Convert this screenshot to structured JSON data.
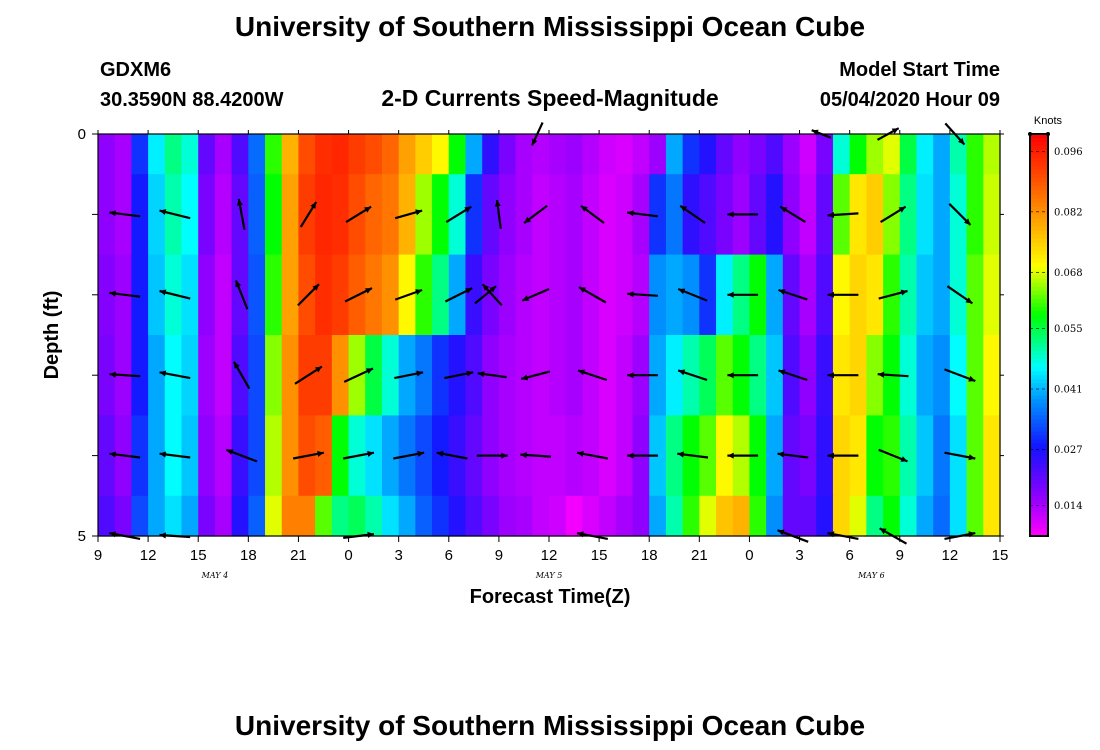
{
  "chart_data": {
    "type": "heatmap",
    "title": "University of Southern Mississippi Ocean Cube",
    "footer_title": "University of Southern Mississippi Ocean Cube",
    "station_id": "GDXM6",
    "station_coords": "30.3590N 88.4200W",
    "subtitle": "2-D Currents Speed-Magnitude",
    "model_start_label": "Model Start Time",
    "model_start_value": "05/04/2020 Hour 09",
    "xlabel": "Forecast Time(Z)",
    "ylabel": "Depth (ft)",
    "x_range": [
      0,
      54
    ],
    "y_range": [
      0,
      5
    ],
    "x_tick_labels": [
      "9",
      "12",
      "15",
      "18",
      "21",
      "0",
      "3",
      "6",
      "9",
      "12",
      "15",
      "18",
      "21",
      "0",
      "3",
      "6",
      "9",
      "12",
      "15"
    ],
    "y_tick_labels": [
      "0",
      "5"
    ],
    "date_labels": [
      {
        "label": "MAY 4",
        "hour": 7
      },
      {
        "label": "MAY 5",
        "hour": 27
      },
      {
        "label": "MAY 6",
        "hour": 46.3
      }
    ],
    "colorbar": {
      "unit": "Knots",
      "min": 0.007,
      "max": 0.1,
      "tick_values": [
        0.096,
        0.082,
        0.068,
        0.055,
        0.041,
        0.027,
        0.014
      ],
      "tick_labels": [
        "0.096",
        "0.082",
        "0.068",
        "0.055",
        "0.041",
        "0.027",
        "0.014"
      ]
    },
    "depth_rows": [
      0,
      1,
      2,
      3,
      4,
      5
    ],
    "hours": [
      0,
      1,
      2,
      3,
      4,
      5,
      6,
      7,
      8,
      9,
      10,
      11,
      12,
      13,
      14,
      15,
      16,
      17,
      18,
      19,
      20,
      21,
      22,
      23,
      24,
      25,
      26,
      27,
      28,
      29,
      30,
      31,
      32,
      33,
      34,
      35,
      36,
      37,
      38,
      39,
      40,
      41,
      42,
      43,
      44,
      45,
      46,
      47,
      48,
      49,
      50,
      51,
      52,
      53
    ],
    "speed": [
      [
        0.016,
        0.014,
        0.03,
        0.045,
        0.052,
        0.048,
        0.02,
        0.014,
        0.022,
        0.035,
        0.06,
        0.078,
        0.09,
        0.094,
        0.095,
        0.092,
        0.09,
        0.087,
        0.08,
        0.075,
        0.07,
        0.058,
        0.04,
        0.025,
        0.018,
        0.014,
        0.013,
        0.014,
        0.015,
        0.013,
        0.011,
        0.01,
        0.012,
        0.015,
        0.04,
        0.03,
        0.026,
        0.02,
        0.016,
        0.018,
        0.022,
        0.015,
        0.011,
        0.018,
        0.048,
        0.058,
        0.065,
        0.068,
        0.055,
        0.045,
        0.04,
        0.05,
        0.06,
        0.066
      ],
      [
        0.016,
        0.014,
        0.028,
        0.043,
        0.05,
        0.046,
        0.018,
        0.013,
        0.02,
        0.034,
        0.058,
        0.08,
        0.092,
        0.095,
        0.094,
        0.09,
        0.087,
        0.085,
        0.078,
        0.065,
        0.058,
        0.048,
        0.03,
        0.02,
        0.016,
        0.014,
        0.012,
        0.013,
        0.014,
        0.012,
        0.01,
        0.011,
        0.014,
        0.03,
        0.036,
        0.025,
        0.022,
        0.018,
        0.015,
        0.02,
        0.026,
        0.016,
        0.012,
        0.02,
        0.062,
        0.072,
        0.075,
        0.064,
        0.052,
        0.044,
        0.04,
        0.048,
        0.06,
        0.067
      ],
      [
        0.017,
        0.015,
        0.028,
        0.042,
        0.048,
        0.044,
        0.016,
        0.012,
        0.02,
        0.033,
        0.06,
        0.08,
        0.09,
        0.094,
        0.092,
        0.088,
        0.085,
        0.082,
        0.07,
        0.06,
        0.052,
        0.04,
        0.024,
        0.018,
        0.015,
        0.013,
        0.012,
        0.013,
        0.014,
        0.012,
        0.01,
        0.011,
        0.013,
        0.038,
        0.04,
        0.038,
        0.03,
        0.045,
        0.052,
        0.058,
        0.04,
        0.02,
        0.014,
        0.022,
        0.07,
        0.074,
        0.072,
        0.06,
        0.05,
        0.042,
        0.04,
        0.048,
        0.062,
        0.068
      ],
      [
        0.018,
        0.015,
        0.028,
        0.04,
        0.046,
        0.043,
        0.015,
        0.012,
        0.022,
        0.032,
        0.064,
        0.082,
        0.092,
        0.092,
        0.082,
        0.065,
        0.055,
        0.048,
        0.04,
        0.036,
        0.03,
        0.026,
        0.022,
        0.016,
        0.014,
        0.013,
        0.012,
        0.013,
        0.014,
        0.012,
        0.01,
        0.012,
        0.015,
        0.04,
        0.045,
        0.05,
        0.054,
        0.062,
        0.058,
        0.052,
        0.042,
        0.022,
        0.016,
        0.024,
        0.072,
        0.074,
        0.064,
        0.058,
        0.048,
        0.04,
        0.038,
        0.046,
        0.062,
        0.07
      ],
      [
        0.02,
        0.016,
        0.03,
        0.04,
        0.046,
        0.042,
        0.016,
        0.013,
        0.024,
        0.032,
        0.066,
        0.082,
        0.09,
        0.088,
        0.058,
        0.048,
        0.044,
        0.04,
        0.036,
        0.032,
        0.028,
        0.024,
        0.02,
        0.016,
        0.014,
        0.013,
        0.012,
        0.012,
        0.013,
        0.012,
        0.01,
        0.012,
        0.016,
        0.042,
        0.052,
        0.058,
        0.062,
        0.07,
        0.066,
        0.058,
        0.04,
        0.02,
        0.018,
        0.025,
        0.074,
        0.072,
        0.058,
        0.06,
        0.05,
        0.042,
        0.036,
        0.044,
        0.062,
        0.072
      ],
      [
        0.022,
        0.018,
        0.032,
        0.04,
        0.044,
        0.04,
        0.018,
        0.014,
        0.026,
        0.034,
        0.068,
        0.084,
        0.084,
        0.062,
        0.052,
        0.054,
        0.05,
        0.044,
        0.04,
        0.034,
        0.03,
        0.026,
        0.022,
        0.018,
        0.015,
        0.014,
        0.012,
        0.011,
        0.008,
        0.01,
        0.012,
        0.014,
        0.016,
        0.04,
        0.05,
        0.06,
        0.068,
        0.076,
        0.078,
        0.06,
        0.038,
        0.02,
        0.02,
        0.026,
        0.074,
        0.068,
        0.052,
        0.058,
        0.048,
        0.04,
        0.035,
        0.044,
        0.062,
        0.072
      ]
    ],
    "vector_hours": [
      1.6,
      4.6,
      8.6,
      12.6,
      15.6,
      18.6,
      21.6,
      24.6,
      27.6,
      30.2,
      33.2,
      36.2,
      39.2,
      42.2,
      45.2,
      48.2,
      51.6
    ],
    "vectors": [
      {
        "depth": 0,
        "hour": 26.3,
        "dx": -0.55,
        "dy": 1.2
      },
      {
        "depth": 0,
        "hour": 43.3,
        "dx": -1.0,
        "dy": -0.4
      },
      {
        "depth": 0,
        "hour": 47.3,
        "dx": 1.1,
        "dy": -0.6
      },
      {
        "depth": 0,
        "hour": 51.3,
        "dx": 1.0,
        "dy": 1.1
      },
      {
        "depth": 1,
        "hour": 1.6,
        "dx": -1.6,
        "dy": -0.2
      },
      {
        "depth": 1,
        "hour": 4.6,
        "dx": -1.6,
        "dy": -0.4
      },
      {
        "depth": 1,
        "hour": 8.6,
        "dx": -0.3,
        "dy": -1.6
      },
      {
        "depth": 1,
        "hour": 12.6,
        "dx": 0.8,
        "dy": -1.3
      },
      {
        "depth": 1,
        "hour": 15.6,
        "dx": 1.3,
        "dy": -0.8
      },
      {
        "depth": 1,
        "hour": 18.6,
        "dx": 1.4,
        "dy": -0.4
      },
      {
        "depth": 1,
        "hour": 21.6,
        "dx": 1.3,
        "dy": -0.8
      },
      {
        "depth": 1,
        "hour": 24.0,
        "dx": -0.2,
        "dy": -1.5
      },
      {
        "depth": 1,
        "hour": 26.2,
        "dx": -1.2,
        "dy": 0.9
      },
      {
        "depth": 1,
        "hour": 29.6,
        "dx": -1.2,
        "dy": -0.9
      },
      {
        "depth": 1,
        "hour": 32.6,
        "dx": -1.6,
        "dy": -0.2
      },
      {
        "depth": 1,
        "hour": 35.6,
        "dx": -1.3,
        "dy": -0.9
      },
      {
        "depth": 1,
        "hour": 38.6,
        "dx": -1.6,
        "dy": 0.0
      },
      {
        "depth": 1,
        "hour": 41.6,
        "dx": -1.3,
        "dy": -0.8
      },
      {
        "depth": 1,
        "hour": 44.6,
        "dx": -1.6,
        "dy": 0.1
      },
      {
        "depth": 1,
        "hour": 47.6,
        "dx": 1.3,
        "dy": -0.8
      },
      {
        "depth": 1,
        "hour": 51.6,
        "dx": 1.1,
        "dy": 1.1
      },
      {
        "depth": 2,
        "hour": 1.6,
        "dx": -1.6,
        "dy": -0.2
      },
      {
        "depth": 2,
        "hour": 4.6,
        "dx": -1.6,
        "dy": -0.4
      },
      {
        "depth": 2,
        "hour": 8.6,
        "dx": -0.6,
        "dy": -1.5
      },
      {
        "depth": 2,
        "hour": 12.6,
        "dx": 1.1,
        "dy": -1.1
      },
      {
        "depth": 2,
        "hour": 15.6,
        "dx": 1.4,
        "dy": -0.7
      },
      {
        "depth": 2,
        "hour": 18.6,
        "dx": 1.4,
        "dy": -0.5
      },
      {
        "depth": 2,
        "hour": 21.6,
        "dx": 1.4,
        "dy": -0.7
      },
      {
        "depth": 2,
        "hour": 23.2,
        "dx": 1.1,
        "dy": -0.9
      },
      {
        "depth": 2,
        "hour": 23.6,
        "dx": -1.0,
        "dy": -1.1
      },
      {
        "depth": 2,
        "hour": 26.2,
        "dx": -1.4,
        "dy": 0.6
      },
      {
        "depth": 2,
        "hour": 29.6,
        "dx": -1.4,
        "dy": -0.8
      },
      {
        "depth": 2,
        "hour": 32.6,
        "dx": -1.6,
        "dy": -0.1
      },
      {
        "depth": 2,
        "hour": 35.6,
        "dx": -1.5,
        "dy": -0.6
      },
      {
        "depth": 2,
        "hour": 38.6,
        "dx": -1.6,
        "dy": 0.0
      },
      {
        "depth": 2,
        "hour": 41.6,
        "dx": -1.5,
        "dy": -0.5
      },
      {
        "depth": 2,
        "hour": 44.6,
        "dx": -1.6,
        "dy": 0.0
      },
      {
        "depth": 2,
        "hour": 47.6,
        "dx": 1.5,
        "dy": -0.4
      },
      {
        "depth": 2,
        "hour": 51.6,
        "dx": 1.3,
        "dy": 0.9
      },
      {
        "depth": 3,
        "hour": 1.6,
        "dx": -1.6,
        "dy": -0.1
      },
      {
        "depth": 3,
        "hour": 4.6,
        "dx": -1.6,
        "dy": -0.3
      },
      {
        "depth": 3,
        "hour": 8.6,
        "dx": -0.8,
        "dy": -1.4
      },
      {
        "depth": 3,
        "hour": 12.6,
        "dx": 1.4,
        "dy": -0.9
      },
      {
        "depth": 3,
        "hour": 15.6,
        "dx": 1.5,
        "dy": -0.7
      },
      {
        "depth": 3,
        "hour": 18.6,
        "dx": 1.5,
        "dy": -0.3
      },
      {
        "depth": 3,
        "hour": 21.6,
        "dx": 1.5,
        "dy": -0.3
      },
      {
        "depth": 3,
        "hour": 23.6,
        "dx": -1.5,
        "dy": -0.2
      },
      {
        "depth": 3,
        "hour": 26.2,
        "dx": -1.5,
        "dy": 0.4
      },
      {
        "depth": 3,
        "hour": 29.6,
        "dx": -1.5,
        "dy": -0.5
      },
      {
        "depth": 3,
        "hour": 32.6,
        "dx": -1.6,
        "dy": 0.0
      },
      {
        "depth": 3,
        "hour": 35.6,
        "dx": -1.5,
        "dy": -0.5
      },
      {
        "depth": 3,
        "hour": 38.6,
        "dx": -1.6,
        "dy": 0.0
      },
      {
        "depth": 3,
        "hour": 41.6,
        "dx": -1.5,
        "dy": -0.5
      },
      {
        "depth": 3,
        "hour": 44.6,
        "dx": -1.6,
        "dy": 0.0
      },
      {
        "depth": 3,
        "hour": 47.6,
        "dx": -1.6,
        "dy": -0.1
      },
      {
        "depth": 3,
        "hour": 51.6,
        "dx": 1.6,
        "dy": 0.6
      },
      {
        "depth": 4,
        "hour": 1.6,
        "dx": -1.6,
        "dy": -0.2
      },
      {
        "depth": 4,
        "hour": 4.6,
        "dx": -1.6,
        "dy": -0.2
      },
      {
        "depth": 4,
        "hour": 8.6,
        "dx": -1.6,
        "dy": -0.6
      },
      {
        "depth": 4,
        "hour": 12.6,
        "dx": 1.6,
        "dy": -0.3
      },
      {
        "depth": 4,
        "hour": 15.6,
        "dx": 1.6,
        "dy": -0.3
      },
      {
        "depth": 4,
        "hour": 18.6,
        "dx": 1.6,
        "dy": -0.3
      },
      {
        "depth": 4,
        "hour": 21.2,
        "dx": -1.6,
        "dy": -0.3
      },
      {
        "depth": 4,
        "hour": 23.6,
        "dx": 1.6,
        "dy": 0.0
      },
      {
        "depth": 4,
        "hour": 26.2,
        "dx": -1.6,
        "dy": -0.1
      },
      {
        "depth": 4,
        "hour": 29.6,
        "dx": -1.6,
        "dy": -0.3
      },
      {
        "depth": 4,
        "hour": 32.6,
        "dx": -1.6,
        "dy": 0.0
      },
      {
        "depth": 4,
        "hour": 35.6,
        "dx": -1.6,
        "dy": -0.2
      },
      {
        "depth": 4,
        "hour": 38.6,
        "dx": -1.6,
        "dy": 0.0
      },
      {
        "depth": 4,
        "hour": 41.6,
        "dx": -1.6,
        "dy": -0.2
      },
      {
        "depth": 4,
        "hour": 44.6,
        "dx": -1.6,
        "dy": 0.0
      },
      {
        "depth": 4,
        "hour": 47.6,
        "dx": 1.5,
        "dy": 0.6
      },
      {
        "depth": 4,
        "hour": 51.6,
        "dx": 1.6,
        "dy": 0.3
      },
      {
        "depth": 5,
        "hour": 1.6,
        "dx": -1.6,
        "dy": -0.3
      },
      {
        "depth": 5,
        "hour": 4.6,
        "dx": -1.6,
        "dy": -0.1
      },
      {
        "depth": 5,
        "hour": 15.6,
        "dx": 1.6,
        "dy": -0.2
      },
      {
        "depth": 5,
        "hour": 29.6,
        "dx": -1.6,
        "dy": -0.3
      },
      {
        "depth": 5,
        "hour": 41.6,
        "dx": -1.6,
        "dy": -0.6
      },
      {
        "depth": 5,
        "hour": 44.6,
        "dx": -1.6,
        "dy": -0.3
      },
      {
        "depth": 5,
        "hour": 47.6,
        "dx": -1.4,
        "dy": -0.8
      },
      {
        "depth": 5,
        "hour": 51.6,
        "dx": 1.6,
        "dy": -0.3
      }
    ]
  }
}
